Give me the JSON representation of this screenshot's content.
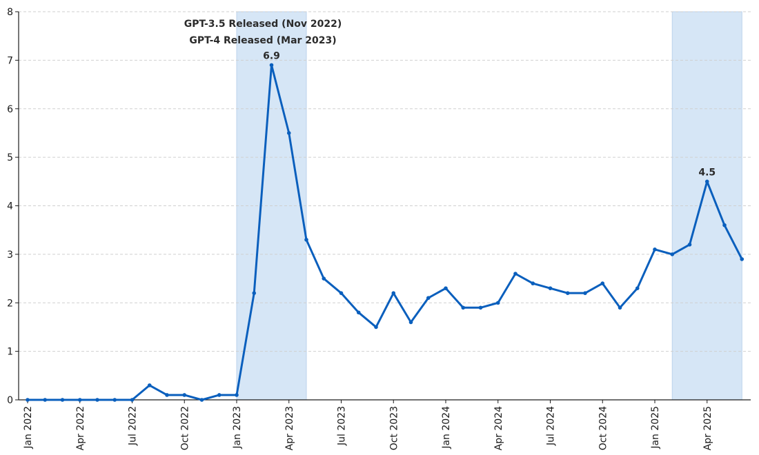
{
  "chart_data": {
    "type": "line",
    "title": "",
    "xlabel": "",
    "ylabel": "",
    "ylim": [
      0,
      8
    ],
    "yticks": [
      0,
      1,
      2,
      3,
      4,
      5,
      6,
      7,
      8
    ],
    "grid": "horizontal dashed",
    "line_color": "#0a5fbd",
    "band_color": "#d6e6f6",
    "x_tick_labels": [
      "Jan 2022",
      "Apr 2022",
      "Jul 2022",
      "Oct 2022",
      "Jan 2023",
      "Apr 2023",
      "Jul 2023",
      "Oct 2023",
      "Jan 2024",
      "Apr 2024",
      "Jul 2024",
      "Oct 2024",
      "Jan 2025",
      "Apr 2025"
    ],
    "x_tick_dates": [
      "2022-01",
      "2022-04",
      "2022-07",
      "2022-10",
      "2023-01",
      "2023-04",
      "2023-07",
      "2023-10",
      "2024-01",
      "2024-04",
      "2024-07",
      "2024-10",
      "2025-01",
      "2025-04"
    ],
    "series": [
      {
        "x": [
          "2022-01",
          "2022-02",
          "2022-03",
          "2022-04",
          "2022-05",
          "2022-06",
          "2022-07",
          "2022-08",
          "2022-09",
          "2022-10",
          "2022-11",
          "2022-12",
          "2023-01",
          "2023-02",
          "2023-03",
          "2023-04",
          "2023-05",
          "2023-06",
          "2023-07",
          "2023-08",
          "2023-09",
          "2023-10",
          "2023-11",
          "2023-12",
          "2024-01",
          "2024-02",
          "2024-03",
          "2024-04",
          "2024-05",
          "2024-06",
          "2024-07",
          "2024-08",
          "2024-09",
          "2024-10",
          "2024-11",
          "2024-12",
          "2025-01",
          "2025-02",
          "2025-03",
          "2025-04",
          "2025-05",
          "2025-06"
        ],
        "values": [
          0,
          0,
          0,
          0,
          0,
          0,
          0,
          0.3,
          0.1,
          0.1,
          0,
          0.1,
          0.1,
          2.2,
          6.9,
          5.5,
          3.3,
          2.5,
          2.2,
          1.8,
          1.5,
          2.2,
          1.6,
          2.1,
          2.3,
          1.9,
          1.9,
          2.0,
          2.6,
          2.4,
          2.3,
          2.2,
          2.2,
          2.4,
          1.9,
          2.3,
          3.1,
          3.0,
          3.2,
          4.5,
          3.6,
          2.9
        ]
      }
    ],
    "bands": [
      {
        "start": "2023-01",
        "end": "2023-05"
      },
      {
        "start": "2025-02",
        "end": "2025-06"
      }
    ],
    "annotations": [
      {
        "text": "GPT-3.5 Released (Nov 2022)"
      },
      {
        "text": "GPT-4 Released (Mar 2023)"
      }
    ],
    "data_labels": [
      {
        "x": "2023-03",
        "value": 6.9,
        "text": "6.9"
      },
      {
        "x": "2025-04",
        "value": 4.5,
        "text": "4.5"
      }
    ]
  }
}
